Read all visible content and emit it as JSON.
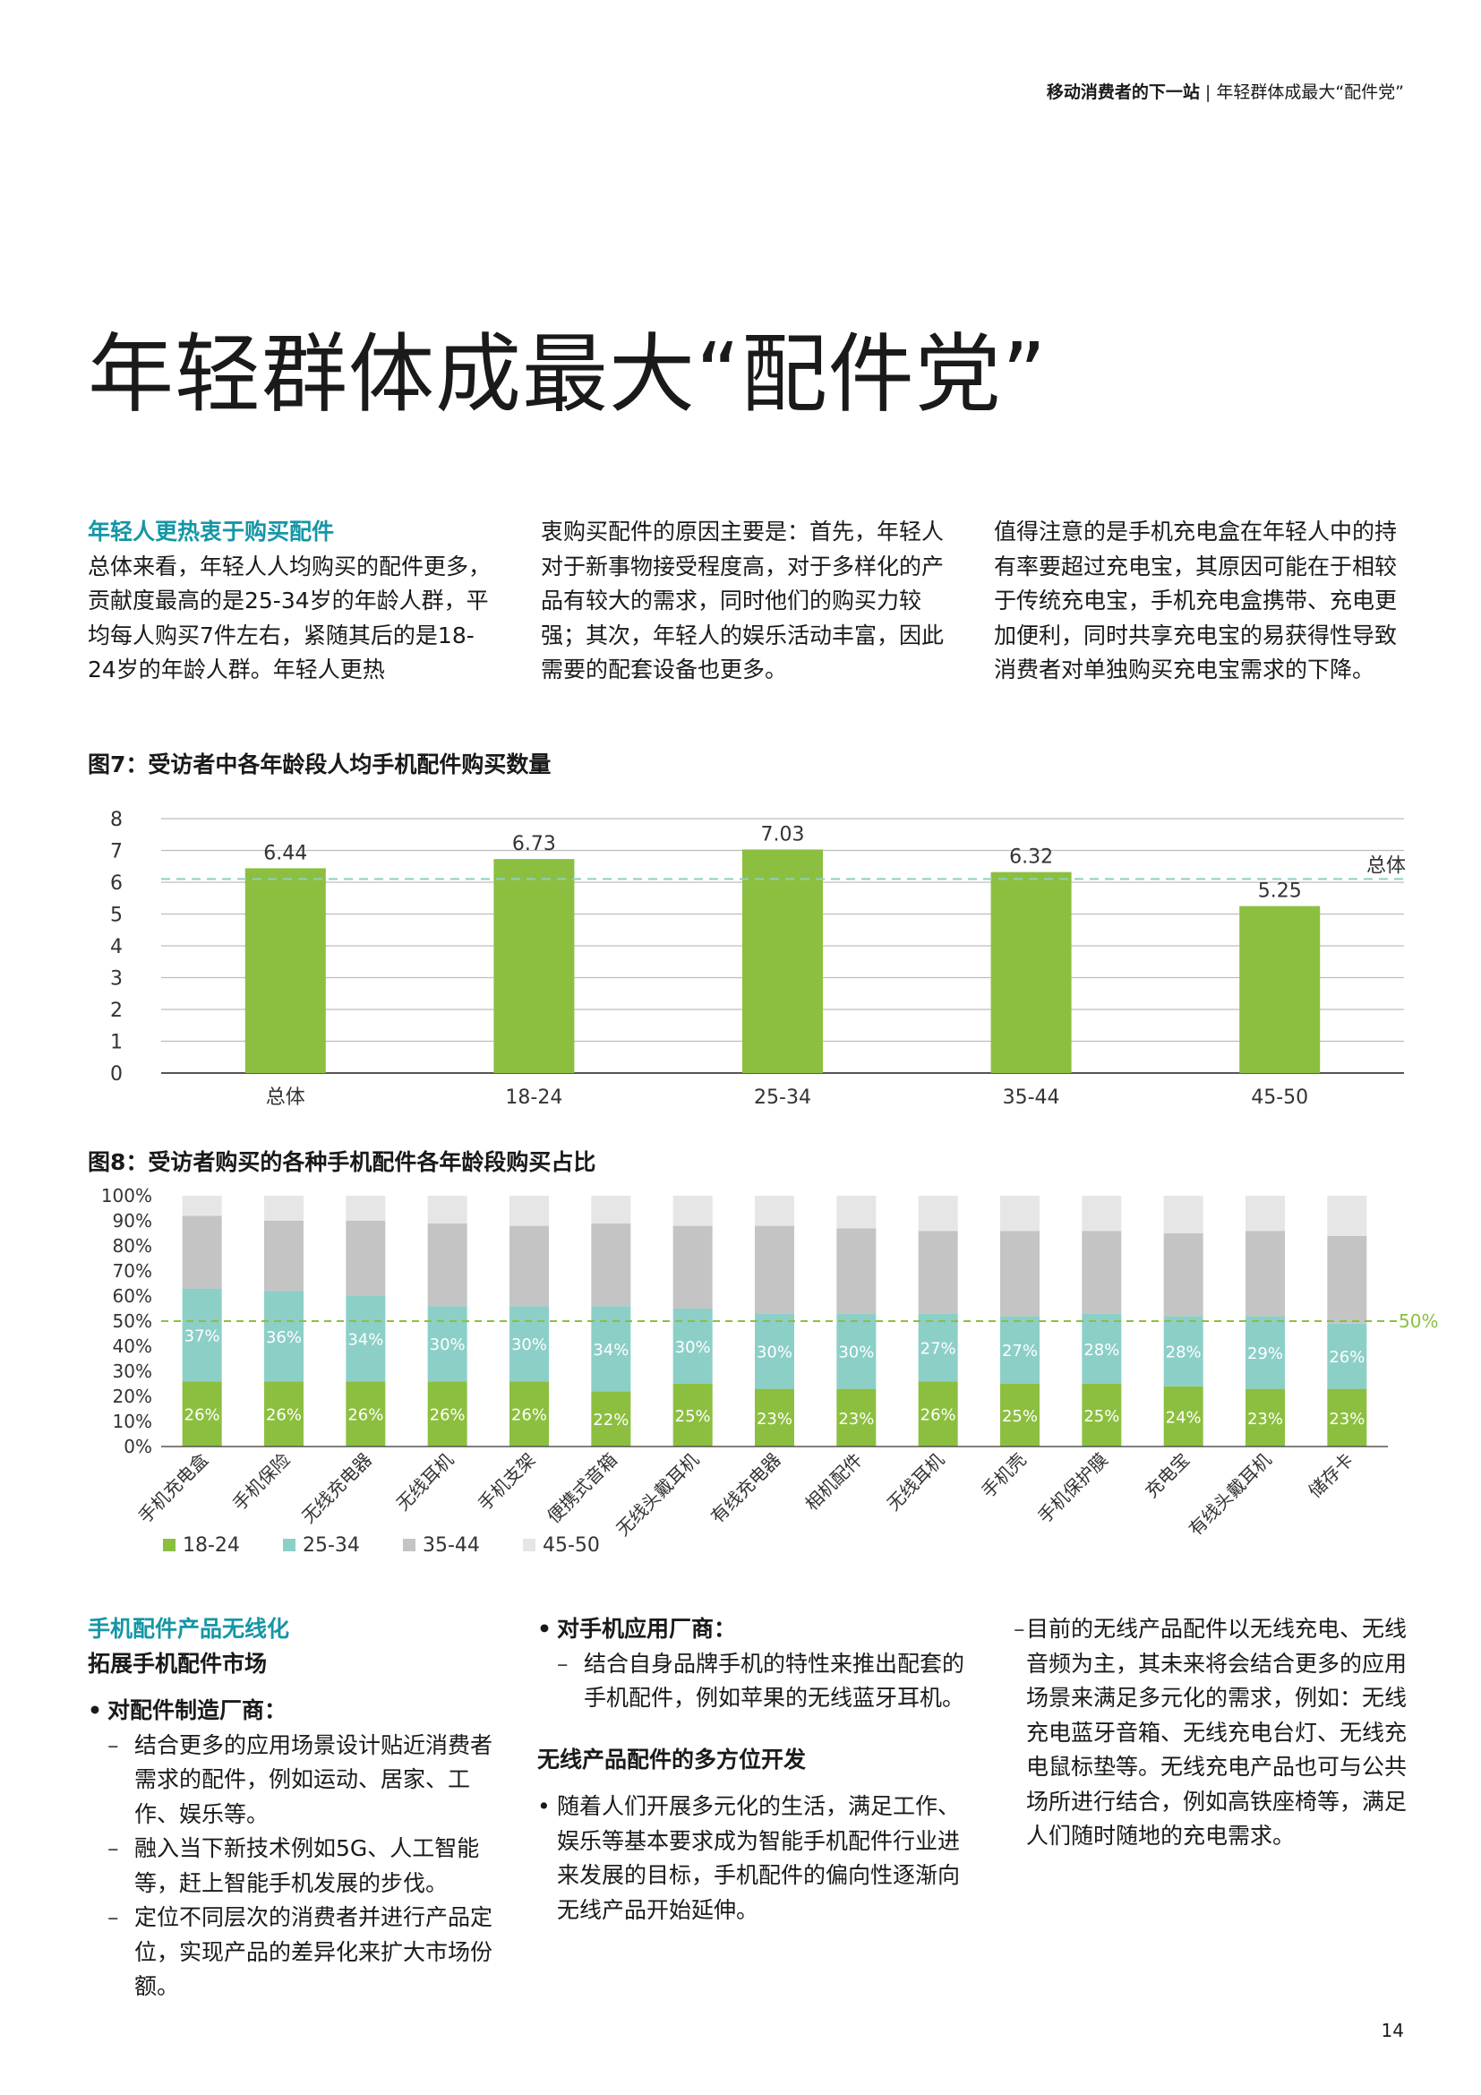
{
  "header": {
    "title_bold": "移动消费者的下一站",
    "separator": "|",
    "section": "年轻群体成最大“配件党”"
  },
  "page_title": "年轻群体成最大“配件党”",
  "intro": {
    "heading": "年轻人更热衷于购买配件",
    "col1": "总体来看，年轻人人均购买的配件更多，贡献度最高的是25-34岁的年龄人群，平均每人购买7件左右，紧随其后的是18-24岁的年龄人群。年轻人更热",
    "col2": "衷购买配件的原因主要是：首先，年轻人对于新事物接受程度高，对于多样化的产品有较大的需求，同时他们的购买力较强；其次，年轻人的娱乐活动丰富，因此需要的配套设备也更多。",
    "col3": "值得注意的是手机充电盒在年轻人中的持有率要超过充电宝，其原因可能在于相较于传统充电宝，手机充电盒携带、充电更加便利，同时共享充电宝的易获得性导致消费者对单独购买充电宝需求的下降。"
  },
  "fig7": {
    "title": "图7：受访者中各年龄段人均手机配件购买数量"
  },
  "fig8": {
    "title": "图8：受访者购买的各种手机配件各年龄段购买占比"
  },
  "chart_data": [
    {
      "type": "bar",
      "categories": [
        "总体",
        "18-24",
        "25-34",
        "35-44",
        "45-50"
      ],
      "values": [
        6.44,
        6.73,
        7.03,
        6.32,
        5.25
      ],
      "ylim": [
        0,
        8
      ],
      "yticks": [
        "0",
        "1",
        "2",
        "3",
        "4",
        "5",
        "6",
        "7",
        "8"
      ],
      "reference_line": {
        "label": "总体",
        "value": 6.44
      },
      "grid": true,
      "colors": {
        "bar": "#8cbf3f",
        "reference": "#8ccfc7"
      }
    },
    {
      "type": "bar",
      "stacked": true,
      "categories": [
        "手机充电盒",
        "手机保险",
        "无线充电器",
        "无线耳机",
        "手机支架",
        "便携式音箱",
        "无线头戴耳机",
        "有线充电器",
        "相机配件",
        "无线耳机",
        "手机壳",
        "手机保护膜",
        "充电宝",
        "有线头戴耳机",
        "储存卡"
      ],
      "series": [
        {
          "name": "18-24",
          "values": [
            26,
            26,
            26,
            26,
            26,
            22,
            25,
            23,
            23,
            26,
            25,
            25,
            24,
            23,
            23
          ],
          "labels": [
            "26%",
            "26%",
            "26%",
            "26%",
            "26%",
            "22%",
            "25%",
            "23%",
            "23%",
            "26%",
            "25%",
            "25%",
            "24%",
            "23%",
            "23%"
          ]
        },
        {
          "name": "25-34",
          "values": [
            37,
            36,
            34,
            30,
            30,
            34,
            30,
            30,
            30,
            27,
            27,
            28,
            28,
            29,
            26
          ],
          "labels": [
            "37%",
            "36%",
            "34%",
            "30%",
            "30%",
            "34%",
            "30%",
            "30%",
            "30%",
            "27%",
            "27%",
            "28%",
            "28%",
            "29%",
            "26%"
          ]
        },
        {
          "name": "35-44",
          "values": [
            29,
            28,
            30,
            33,
            32,
            33,
            33,
            35,
            34,
            33,
            34,
            33,
            33,
            34,
            35
          ]
        },
        {
          "name": "45-50",
          "values": [
            8,
            10,
            10,
            11,
            12,
            11,
            12,
            12,
            13,
            14,
            14,
            14,
            15,
            14,
            16
          ]
        }
      ],
      "ylim": [
        0,
        100
      ],
      "yticks": [
        "0%",
        "10%",
        "20%",
        "30%",
        "40%",
        "50%",
        "60%",
        "70%",
        "80%",
        "90%",
        "100%"
      ],
      "reference_line": {
        "label": "50%",
        "value": 50
      },
      "legend": "bottom-left",
      "colors": {
        "18-24": "#8cbf3f",
        "25-34": "#8ccfc7",
        "35-44": "#c4c4c4",
        "45-50": "#e6e6e6",
        "reference": "#8cbf3f"
      }
    }
  ],
  "section2": {
    "heading_line1": "手机配件产品无线化",
    "heading_line2": "拓展手机配件市场",
    "bullet1": "对配件制造厂商：",
    "dash1": "结合更多的应用场景设计贴近消费者需求的配件，例如运动、居家、工作、娱乐等。",
    "dash2": "融入当下新技术例如5G、人工智能等，赶上智能手机发展的步伐。",
    "dash3": "定位不同层次的消费者并进行产品定位，实现产品的差异化来扩大市场份额。",
    "bullet2": "对手机应用厂商：",
    "dash4": "结合自身品牌手机的特性来推出配套的手机配件，例如苹果的无线蓝牙耳机。",
    "heading3": "无线产品配件的多方位开发",
    "bullet3": "随着人们开展多元化的生活，满足工作、娱乐等基本要求成为智能手机配件行业进来发展的目标，手机配件的偏向性逐渐向无线产品开始延伸。",
    "dash5": "目前的无线产品配件以无线充电、无线音频为主，其未来将会结合更多的应用场景来满足多元化的需求，例如：无线充电蓝牙音箱、无线充电台灯、无线充电鼠标垫等。无线充电产品也可与公共场所进行结合，例如高铁座椅等，满足人们随时随地的充电需求。"
  },
  "page_number": "14"
}
